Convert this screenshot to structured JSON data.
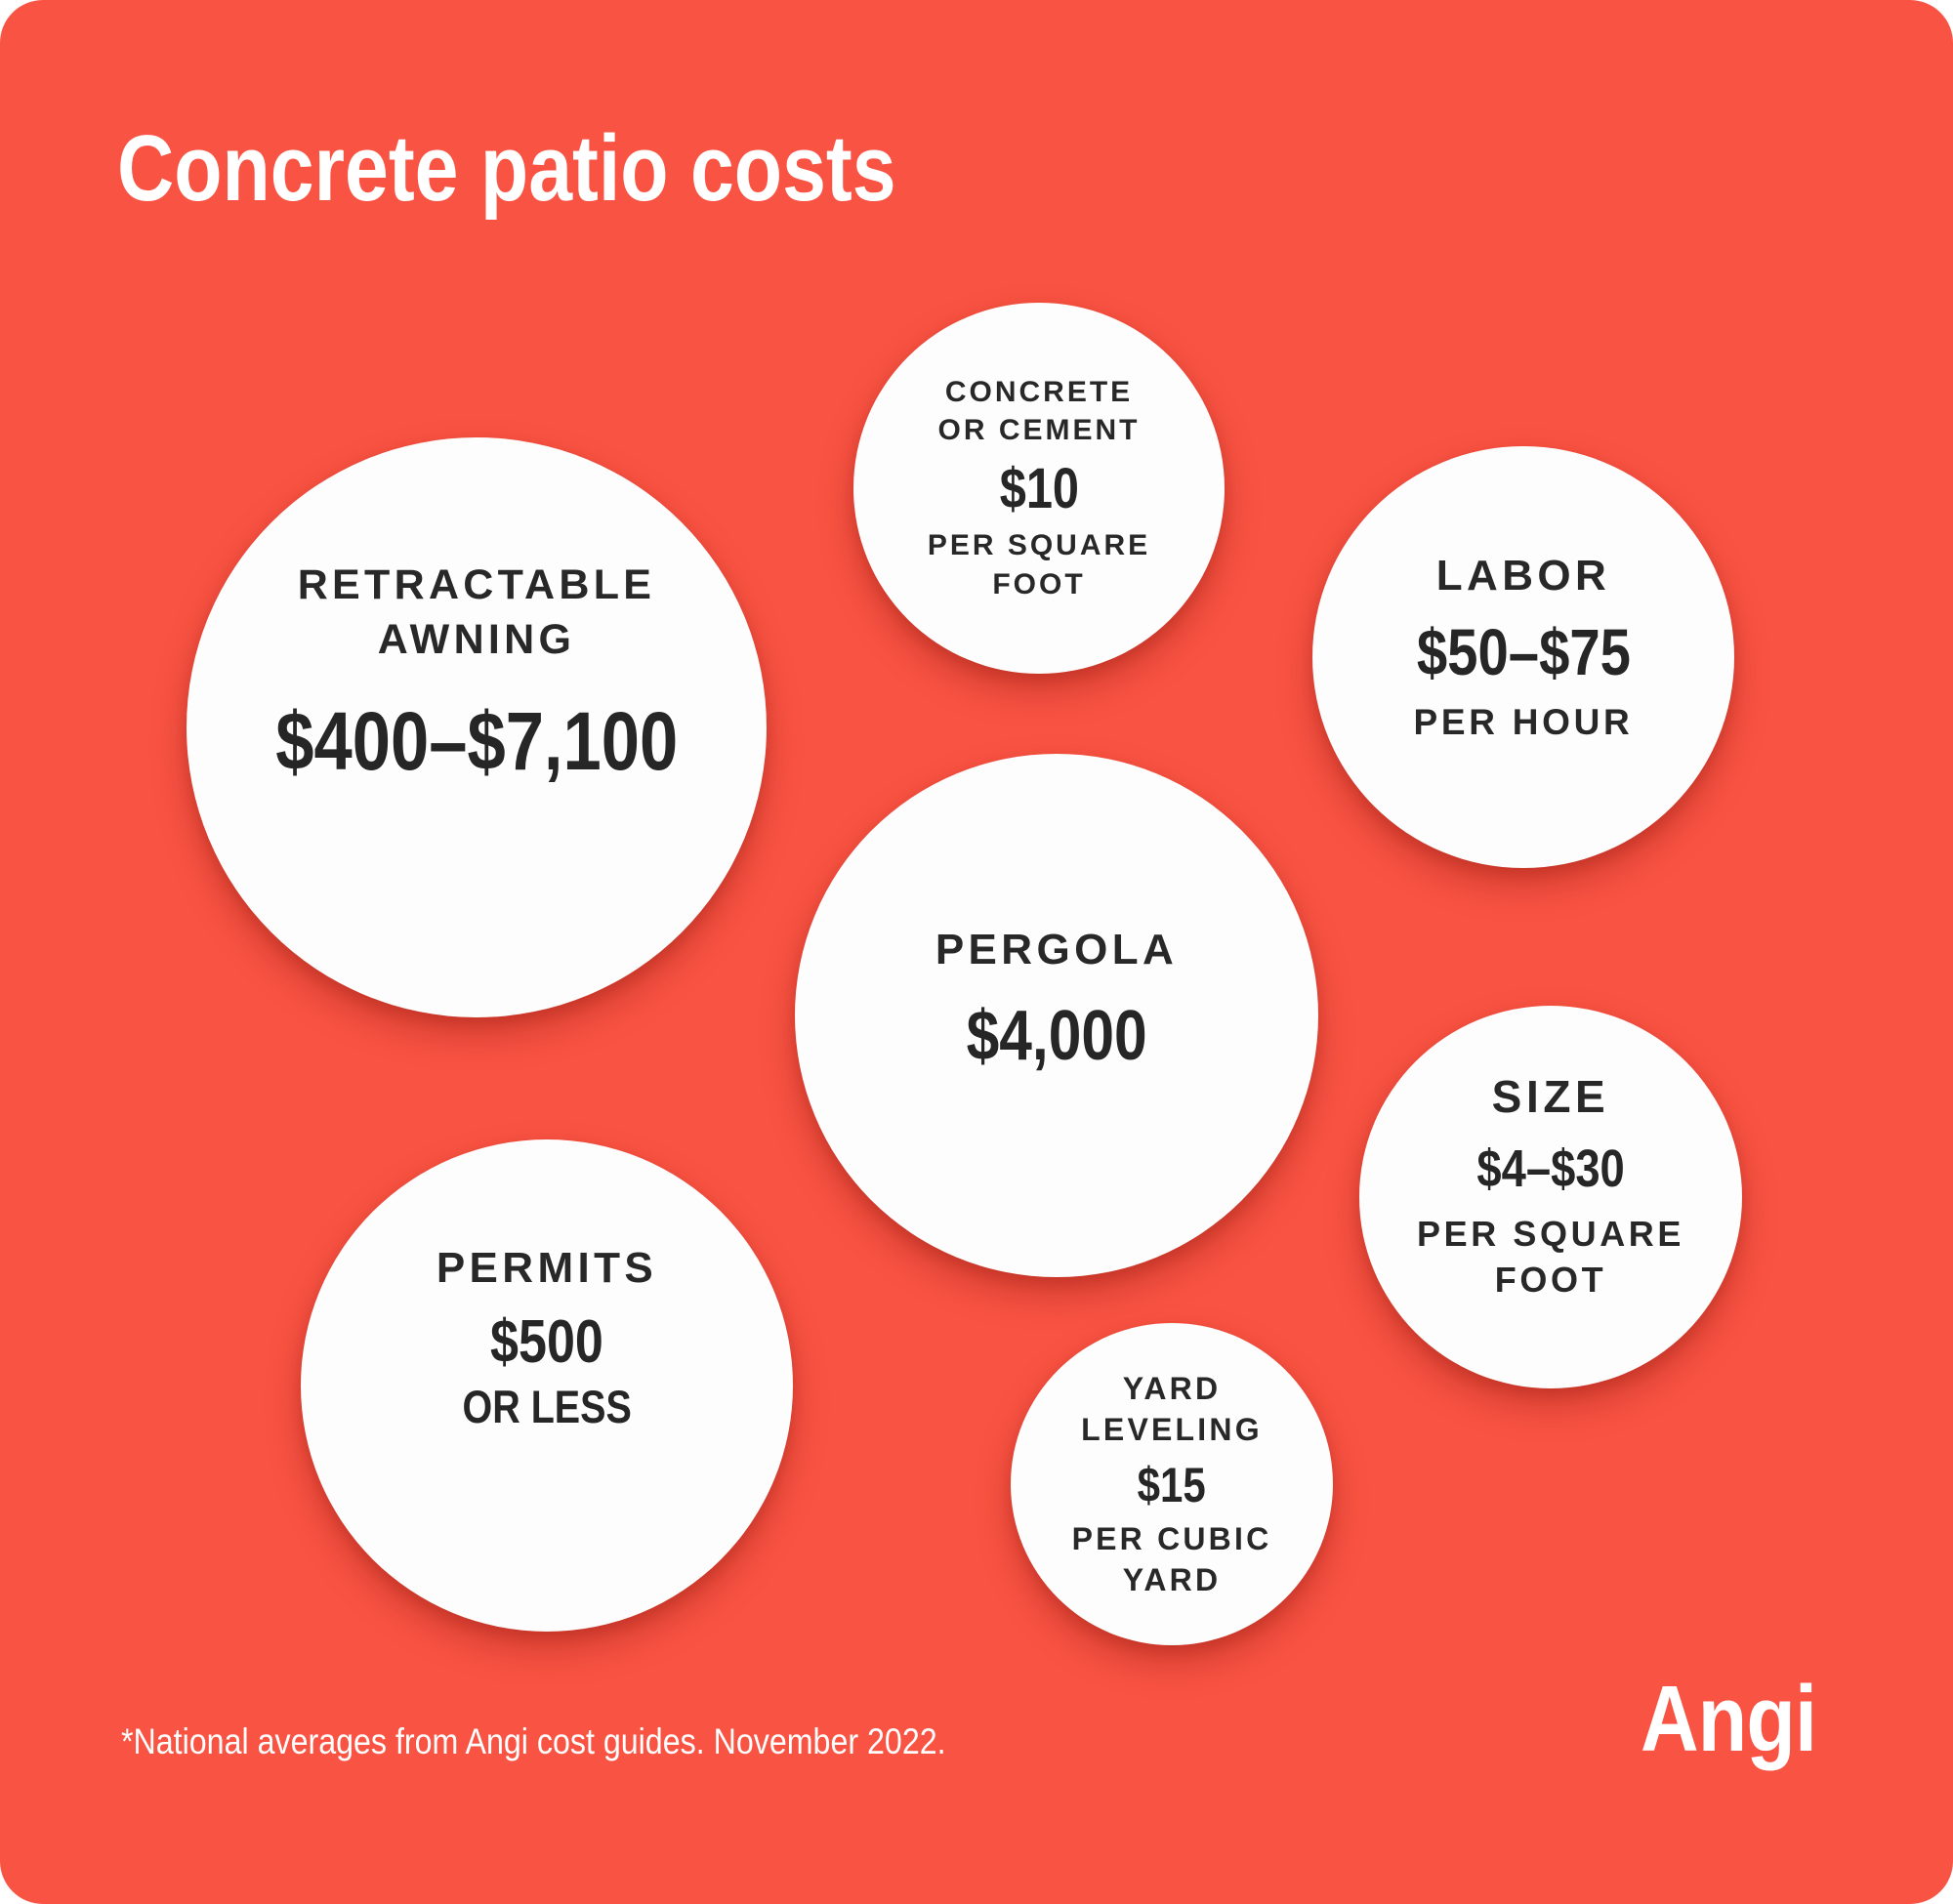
{
  "title": "Concrete patio costs",
  "footnote": "*National averages from Angi cost guides. November 2022.",
  "brand": {
    "logo_text": "Angi"
  },
  "colors": {
    "background": "#F95343",
    "bubble_fill": "#FDFDFD",
    "bubble_text": "#282828",
    "title_text": "#FFFFFF",
    "shadow": "rgba(150,28,16,0.42)"
  },
  "chart_data": {
    "type": "bubble",
    "title": "Concrete patio costs",
    "legend_position": "none",
    "source_note": "*National averages from Angi cost guides. November 2022.",
    "items": [
      {
        "label": "Retractable awning",
        "display_value": "$400–$7,100",
        "unit": "",
        "min": 400,
        "max": 7100
      },
      {
        "label": "Concrete or cement",
        "display_value": "$10",
        "unit": "per square foot",
        "min": 10,
        "max": 10
      },
      {
        "label": "Labor",
        "display_value": "$50–$75",
        "unit": "per hour",
        "min": 50,
        "max": 75
      },
      {
        "label": "Pergola",
        "display_value": "$4,000",
        "unit": "",
        "min": 4000,
        "max": 4000
      },
      {
        "label": "Size",
        "display_value": "$4–$30",
        "unit": "per square foot",
        "min": 4,
        "max": 30
      },
      {
        "label": "Permits",
        "display_value": "$500",
        "unit": "or less",
        "min": 0,
        "max": 500
      },
      {
        "label": "Yard leveling",
        "display_value": "$15",
        "unit": "per cubic yard",
        "min": 15,
        "max": 15
      }
    ]
  },
  "bubbles": [
    {
      "name": "retractable-awning",
      "label1": "RETRACTABLE",
      "label2": "AWNING",
      "value": "$400–$7,100"
    },
    {
      "name": "concrete-or-cement",
      "label1": "CONCRETE",
      "label2": "OR CEMENT",
      "value": "$10",
      "sub1": "PER SQUARE",
      "sub2": "FOOT"
    },
    {
      "name": "labor",
      "label1": "LABOR",
      "value": "$50–$75",
      "sub1": "PER HOUR"
    },
    {
      "name": "pergola",
      "label1": "PERGOLA",
      "value": "$4,000"
    },
    {
      "name": "size",
      "label1": "SIZE",
      "value": "$4–$30",
      "sub1": "PER SQUARE",
      "sub2": "FOOT"
    },
    {
      "name": "permits",
      "label1": "PERMITS",
      "value": "$500",
      "sub1": "OR LESS"
    },
    {
      "name": "yard-leveling",
      "label1": "YARD",
      "label2": "LEVELING",
      "value": "$15",
      "sub1": "PER CUBIC",
      "sub2": "YARD"
    }
  ]
}
